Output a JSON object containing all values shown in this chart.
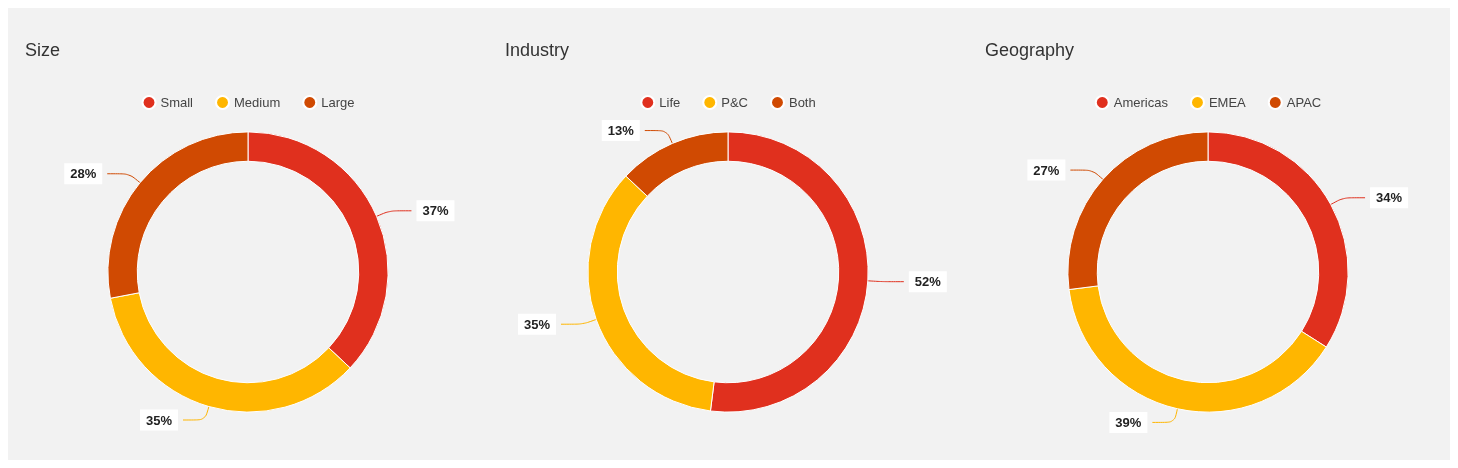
{
  "chart_data": [
    {
      "type": "donut",
      "title": "Size",
      "categories": [
        "Small",
        "Medium",
        "Large"
      ],
      "values": [
        37,
        35,
        28
      ],
      "value_labels": [
        "37%",
        "35%",
        "28%"
      ],
      "colors": [
        "#e0301e",
        "#ffb600",
        "#d04a02"
      ],
      "legend": "top"
    },
    {
      "type": "donut",
      "title": "Industry",
      "categories": [
        "Life",
        "P&C",
        "Both"
      ],
      "values": [
        52,
        35,
        13
      ],
      "value_labels": [
        "52%",
        "35%",
        "13%"
      ],
      "colors": [
        "#e0301e",
        "#ffb600",
        "#d04a02"
      ],
      "legend": "top"
    },
    {
      "type": "donut",
      "title": "Geography",
      "categories": [
        "Americas",
        "EMEA",
        "APAC"
      ],
      "values": [
        34,
        39,
        27
      ],
      "value_labels": [
        "34%",
        "39%",
        "27%"
      ],
      "colors": [
        "#e0301e",
        "#ffb600",
        "#d04a02"
      ],
      "legend": "top"
    }
  ]
}
